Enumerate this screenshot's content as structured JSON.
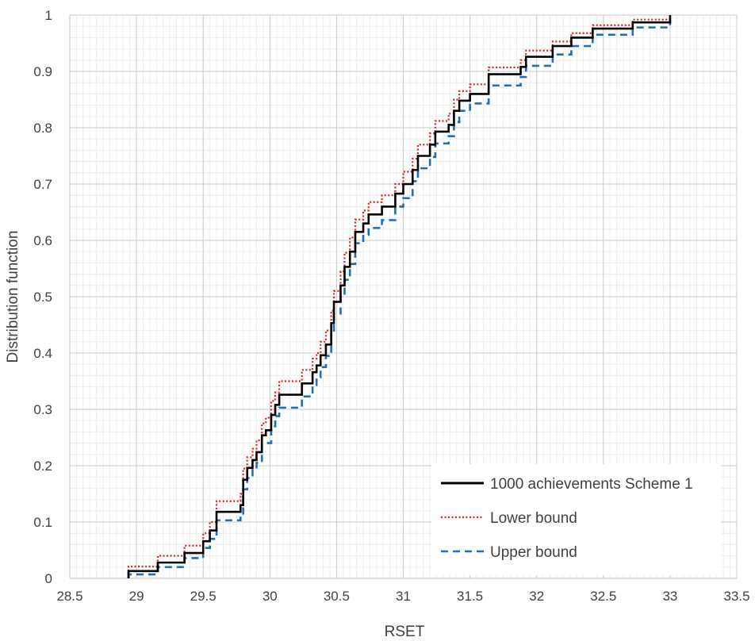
{
  "chart_data": {
    "type": "line",
    "xlabel": "RSET",
    "ylabel": "Distribution function",
    "xlim": [
      28.5,
      33.5
    ],
    "ylim": [
      0,
      1
    ],
    "x_ticks": [
      "28.5",
      "29",
      "29.5",
      "30",
      "30.5",
      "31",
      "31.5",
      "32",
      "32.5",
      "33",
      "33.5"
    ],
    "y_ticks": [
      "0",
      "0.1",
      "0.2",
      "0.3",
      "0.4",
      "0.5",
      "0.6",
      "0.7",
      "0.8",
      "0.9",
      "1"
    ],
    "grid": true,
    "legend_position": "bottom-right",
    "series": [
      {
        "name": "1000 achievements Scheme 1",
        "color": "#000000",
        "style": "solid",
        "points": [
          [
            28.94,
            0.0
          ],
          [
            28.94,
            0.013
          ],
          [
            29.16,
            0.013
          ],
          [
            29.16,
            0.028
          ],
          [
            29.36,
            0.028
          ],
          [
            29.36,
            0.045
          ],
          [
            29.5,
            0.045
          ],
          [
            29.5,
            0.066
          ],
          [
            29.55,
            0.066
          ],
          [
            29.55,
            0.085
          ],
          [
            29.6,
            0.085
          ],
          [
            29.6,
            0.118
          ],
          [
            29.78,
            0.118
          ],
          [
            29.78,
            0.13
          ],
          [
            29.8,
            0.13
          ],
          [
            29.8,
            0.175
          ],
          [
            29.83,
            0.175
          ],
          [
            29.83,
            0.196
          ],
          [
            29.87,
            0.196
          ],
          [
            29.87,
            0.21
          ],
          [
            29.9,
            0.21
          ],
          [
            29.9,
            0.224
          ],
          [
            29.94,
            0.224
          ],
          [
            29.94,
            0.254
          ],
          [
            29.97,
            0.254
          ],
          [
            29.97,
            0.263
          ],
          [
            30.01,
            0.263
          ],
          [
            30.01,
            0.29
          ],
          [
            30.04,
            0.29
          ],
          [
            30.04,
            0.308
          ],
          [
            30.07,
            0.308
          ],
          [
            30.07,
            0.326
          ],
          [
            30.24,
            0.326
          ],
          [
            30.24,
            0.346
          ],
          [
            30.32,
            0.346
          ],
          [
            30.32,
            0.366
          ],
          [
            30.35,
            0.366
          ],
          [
            30.35,
            0.378
          ],
          [
            30.38,
            0.378
          ],
          [
            30.38,
            0.396
          ],
          [
            30.42,
            0.396
          ],
          [
            30.42,
            0.415
          ],
          [
            30.46,
            0.415
          ],
          [
            30.46,
            0.453
          ],
          [
            30.48,
            0.453
          ],
          [
            30.48,
            0.491
          ],
          [
            30.53,
            0.491
          ],
          [
            30.53,
            0.52
          ],
          [
            30.56,
            0.52
          ],
          [
            30.56,
            0.553
          ],
          [
            30.6,
            0.553
          ],
          [
            30.6,
            0.58
          ],
          [
            30.64,
            0.58
          ],
          [
            30.64,
            0.615
          ],
          [
            30.7,
            0.615
          ],
          [
            30.7,
            0.63
          ],
          [
            30.74,
            0.63
          ],
          [
            30.74,
            0.646
          ],
          [
            30.84,
            0.646
          ],
          [
            30.84,
            0.66
          ],
          [
            30.94,
            0.66
          ],
          [
            30.94,
            0.683
          ],
          [
            31.0,
            0.683
          ],
          [
            31.0,
            0.7
          ],
          [
            31.07,
            0.7
          ],
          [
            31.07,
            0.725
          ],
          [
            31.11,
            0.725
          ],
          [
            31.11,
            0.75
          ],
          [
            31.2,
            0.75
          ],
          [
            31.2,
            0.77
          ],
          [
            31.24,
            0.77
          ],
          [
            31.24,
            0.793
          ],
          [
            31.34,
            0.793
          ],
          [
            31.34,
            0.805
          ],
          [
            31.38,
            0.805
          ],
          [
            31.38,
            0.83
          ],
          [
            31.42,
            0.83
          ],
          [
            31.42,
            0.848
          ],
          [
            31.5,
            0.848
          ],
          [
            31.5,
            0.86
          ],
          [
            31.64,
            0.86
          ],
          [
            31.64,
            0.895
          ],
          [
            31.88,
            0.895
          ],
          [
            31.88,
            0.908
          ],
          [
            31.92,
            0.908
          ],
          [
            31.92,
            0.926
          ],
          [
            32.12,
            0.926
          ],
          [
            32.12,
            0.945
          ],
          [
            32.26,
            0.945
          ],
          [
            32.26,
            0.96
          ],
          [
            32.42,
            0.96
          ],
          [
            32.42,
            0.976
          ],
          [
            32.72,
            0.976
          ],
          [
            32.72,
            0.987
          ],
          [
            33.0,
            0.987
          ],
          [
            33.0,
            1.0
          ]
        ]
      },
      {
        "name": "Lower bound",
        "color": "#e02020",
        "style": "dotted",
        "points": [
          [
            28.94,
            0.0
          ],
          [
            28.94,
            0.021
          ],
          [
            29.16,
            0.021
          ],
          [
            29.16,
            0.04
          ],
          [
            29.36,
            0.04
          ],
          [
            29.36,
            0.058
          ],
          [
            29.5,
            0.058
          ],
          [
            29.5,
            0.08
          ],
          [
            29.55,
            0.08
          ],
          [
            29.55,
            0.1
          ],
          [
            29.6,
            0.1
          ],
          [
            29.6,
            0.137
          ],
          [
            29.78,
            0.137
          ],
          [
            29.78,
            0.15
          ],
          [
            29.8,
            0.15
          ],
          [
            29.8,
            0.195
          ],
          [
            29.83,
            0.195
          ],
          [
            29.83,
            0.215
          ],
          [
            29.87,
            0.215
          ],
          [
            29.87,
            0.23
          ],
          [
            29.9,
            0.23
          ],
          [
            29.9,
            0.245
          ],
          [
            29.94,
            0.245
          ],
          [
            29.94,
            0.275
          ],
          [
            29.97,
            0.275
          ],
          [
            29.97,
            0.285
          ],
          [
            30.01,
            0.285
          ],
          [
            30.01,
            0.315
          ],
          [
            30.04,
            0.315
          ],
          [
            30.04,
            0.33
          ],
          [
            30.07,
            0.33
          ],
          [
            30.07,
            0.35
          ],
          [
            30.24,
            0.35
          ],
          [
            30.24,
            0.37
          ],
          [
            30.32,
            0.37
          ],
          [
            30.32,
            0.39
          ],
          [
            30.35,
            0.39
          ],
          [
            30.35,
            0.4
          ],
          [
            30.38,
            0.4
          ],
          [
            30.38,
            0.42
          ],
          [
            30.42,
            0.42
          ],
          [
            30.42,
            0.44
          ],
          [
            30.46,
            0.44
          ],
          [
            30.46,
            0.475
          ],
          [
            30.48,
            0.475
          ],
          [
            30.48,
            0.51
          ],
          [
            30.53,
            0.51
          ],
          [
            30.53,
            0.545
          ],
          [
            30.56,
            0.545
          ],
          [
            30.56,
            0.578
          ],
          [
            30.6,
            0.578
          ],
          [
            30.6,
            0.605
          ],
          [
            30.64,
            0.605
          ],
          [
            30.64,
            0.637
          ],
          [
            30.7,
            0.637
          ],
          [
            30.7,
            0.653
          ],
          [
            30.74,
            0.653
          ],
          [
            30.74,
            0.668
          ],
          [
            30.84,
            0.668
          ],
          [
            30.84,
            0.68
          ],
          [
            30.94,
            0.68
          ],
          [
            30.94,
            0.7
          ],
          [
            31.0,
            0.7
          ],
          [
            31.0,
            0.722
          ],
          [
            31.07,
            0.722
          ],
          [
            31.07,
            0.745
          ],
          [
            31.11,
            0.745
          ],
          [
            31.11,
            0.77
          ],
          [
            31.2,
            0.77
          ],
          [
            31.2,
            0.79
          ],
          [
            31.24,
            0.79
          ],
          [
            31.24,
            0.812
          ],
          [
            31.34,
            0.812
          ],
          [
            31.34,
            0.825
          ],
          [
            31.38,
            0.825
          ],
          [
            31.38,
            0.85
          ],
          [
            31.42,
            0.85
          ],
          [
            31.42,
            0.865
          ],
          [
            31.5,
            0.865
          ],
          [
            31.5,
            0.877
          ],
          [
            31.64,
            0.877
          ],
          [
            31.64,
            0.907
          ],
          [
            31.88,
            0.907
          ],
          [
            31.88,
            0.92
          ],
          [
            31.92,
            0.92
          ],
          [
            31.92,
            0.937
          ],
          [
            32.12,
            0.937
          ],
          [
            32.12,
            0.953
          ],
          [
            32.26,
            0.953
          ],
          [
            32.26,
            0.968
          ],
          [
            32.42,
            0.968
          ],
          [
            32.42,
            0.982
          ],
          [
            32.72,
            0.982
          ],
          [
            32.72,
            0.992
          ],
          [
            33.0,
            0.992
          ],
          [
            33.0,
            1.0
          ]
        ]
      },
      {
        "name": "Upper bound",
        "color": "#1f6fb5",
        "style": "dashed",
        "points": [
          [
            28.94,
            0.0
          ],
          [
            28.94,
            0.007
          ],
          [
            29.16,
            0.007
          ],
          [
            29.16,
            0.02
          ],
          [
            29.36,
            0.02
          ],
          [
            29.36,
            0.036
          ],
          [
            29.5,
            0.036
          ],
          [
            29.5,
            0.054
          ],
          [
            29.55,
            0.054
          ],
          [
            29.55,
            0.07
          ],
          [
            29.6,
            0.07
          ],
          [
            29.6,
            0.103
          ],
          [
            29.78,
            0.103
          ],
          [
            29.78,
            0.113
          ],
          [
            29.8,
            0.113
          ],
          [
            29.8,
            0.158
          ],
          [
            29.83,
            0.158
          ],
          [
            29.83,
            0.178
          ],
          [
            29.87,
            0.178
          ],
          [
            29.87,
            0.192
          ],
          [
            29.9,
            0.192
          ],
          [
            29.9,
            0.205
          ],
          [
            29.94,
            0.205
          ],
          [
            29.94,
            0.24
          ],
          [
            30.01,
            0.24
          ],
          [
            30.01,
            0.27
          ],
          [
            30.04,
            0.27
          ],
          [
            30.04,
            0.288
          ],
          [
            30.07,
            0.288
          ],
          [
            30.07,
            0.303
          ],
          [
            30.24,
            0.303
          ],
          [
            30.24,
            0.323
          ],
          [
            30.32,
            0.323
          ],
          [
            30.32,
            0.343
          ],
          [
            30.35,
            0.343
          ],
          [
            30.35,
            0.357
          ],
          [
            30.38,
            0.357
          ],
          [
            30.38,
            0.375
          ],
          [
            30.42,
            0.375
          ],
          [
            30.42,
            0.395
          ],
          [
            30.46,
            0.395
          ],
          [
            30.46,
            0.433
          ],
          [
            30.48,
            0.433
          ],
          [
            30.48,
            0.47
          ],
          [
            30.53,
            0.47
          ],
          [
            30.53,
            0.5
          ],
          [
            30.56,
            0.5
          ],
          [
            30.56,
            0.53
          ],
          [
            30.6,
            0.53
          ],
          [
            30.6,
            0.558
          ],
          [
            30.64,
            0.558
          ],
          [
            30.64,
            0.595
          ],
          [
            30.7,
            0.595
          ],
          [
            30.7,
            0.61
          ],
          [
            30.74,
            0.61
          ],
          [
            30.74,
            0.622
          ],
          [
            30.84,
            0.622
          ],
          [
            30.84,
            0.636
          ],
          [
            30.94,
            0.636
          ],
          [
            30.94,
            0.66
          ],
          [
            31.0,
            0.66
          ],
          [
            31.0,
            0.675
          ],
          [
            31.07,
            0.675
          ],
          [
            31.07,
            0.705
          ],
          [
            31.11,
            0.705
          ],
          [
            31.11,
            0.728
          ],
          [
            31.2,
            0.728
          ],
          [
            31.2,
            0.748
          ],
          [
            31.24,
            0.748
          ],
          [
            31.24,
            0.772
          ],
          [
            31.34,
            0.772
          ],
          [
            31.34,
            0.785
          ],
          [
            31.38,
            0.785
          ],
          [
            31.38,
            0.81
          ],
          [
            31.42,
            0.81
          ],
          [
            31.42,
            0.83
          ],
          [
            31.5,
            0.83
          ],
          [
            31.5,
            0.843
          ],
          [
            31.64,
            0.843
          ],
          [
            31.64,
            0.875
          ],
          [
            31.88,
            0.875
          ],
          [
            31.88,
            0.89
          ],
          [
            31.92,
            0.89
          ],
          [
            31.92,
            0.91
          ],
          [
            32.12,
            0.91
          ],
          [
            32.12,
            0.93
          ],
          [
            32.26,
            0.93
          ],
          [
            32.26,
            0.945
          ],
          [
            32.42,
            0.945
          ],
          [
            32.42,
            0.965
          ],
          [
            32.72,
            0.965
          ],
          [
            32.72,
            0.978
          ],
          [
            33.0,
            0.978
          ],
          [
            33.0,
            1.0
          ]
        ]
      }
    ]
  }
}
